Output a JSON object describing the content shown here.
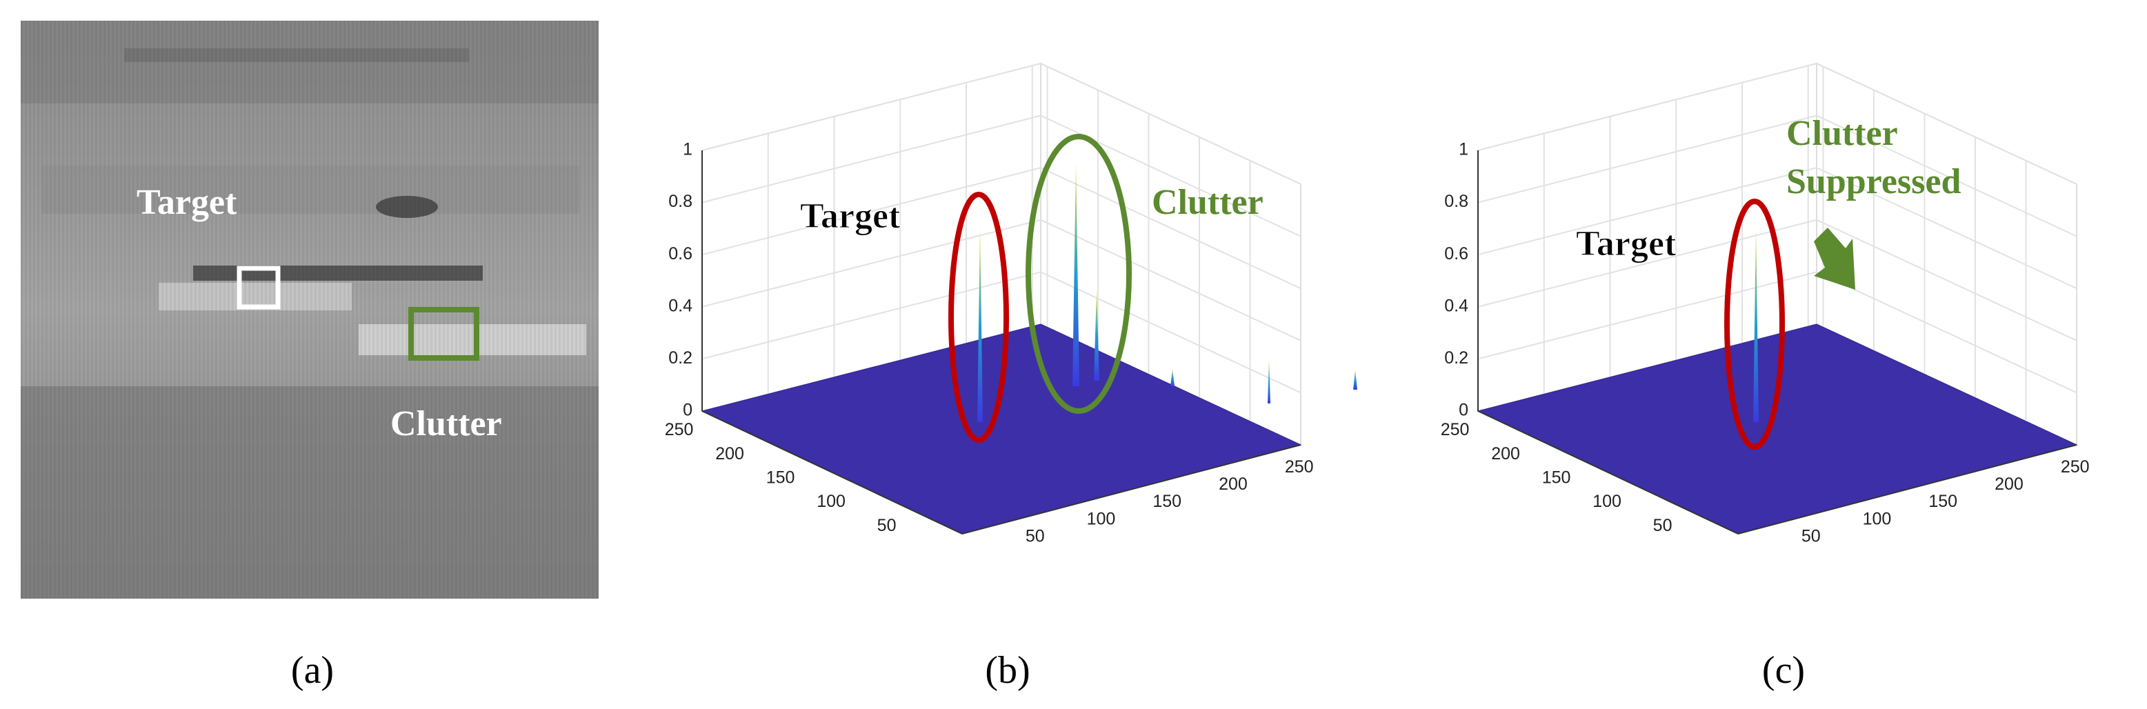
{
  "panels": [
    {
      "caption": "(a)",
      "annotations": {
        "target": "Target",
        "clutter": "Clutter"
      }
    },
    {
      "caption": "(b)",
      "annotations": {
        "target": "Target",
        "clutter": [
          "Clutter"
        ]
      },
      "z_ticks": [
        0,
        0.2,
        0.4,
        0.6,
        0.8,
        1
      ],
      "x_ticks": [
        50,
        100,
        150,
        200,
        250
      ],
      "y_ticks": [
        50,
        100,
        150,
        200,
        250
      ]
    },
    {
      "caption": "(c)",
      "annotations": {
        "target": "Target",
        "clutter": [
          "Clutter",
          "Suppressed"
        ]
      },
      "z_ticks": [
        0,
        0.2,
        0.4,
        0.6,
        0.8,
        1
      ],
      "x_ticks": [
        50,
        100,
        150,
        200,
        250
      ],
      "y_ticks": [
        50,
        100,
        150,
        200,
        250
      ]
    }
  ]
}
